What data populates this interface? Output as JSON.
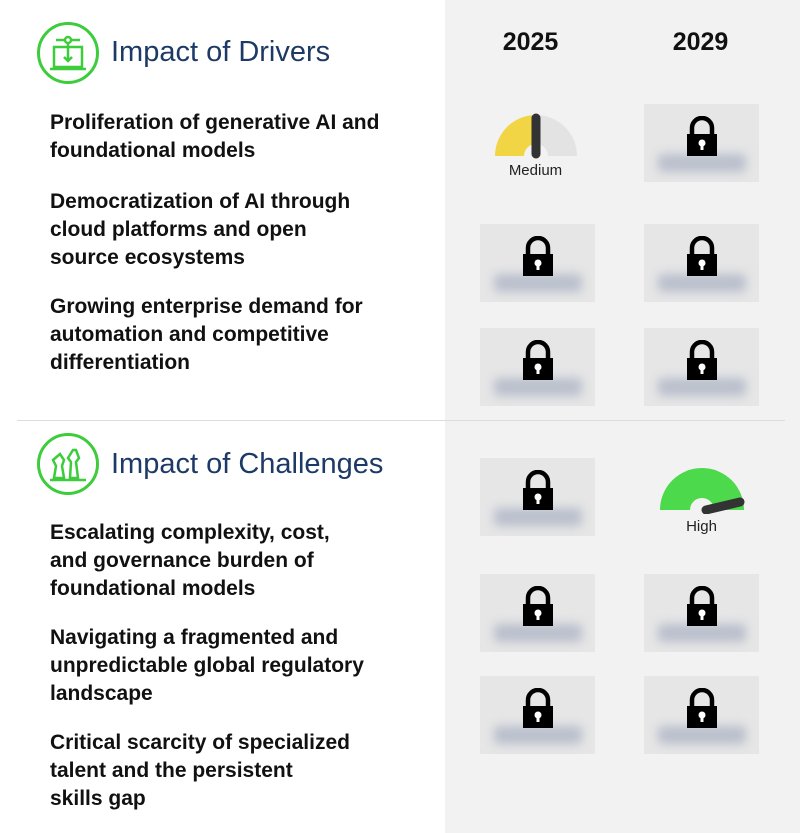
{
  "columns": [
    "2025",
    "2029"
  ],
  "drivers": {
    "title": "Impact of Drivers",
    "icon": "ai-laptop-icon",
    "rows": [
      {
        "label": "Proliferation of generative AI and foundational models",
        "y2025": {
          "type": "gauge",
          "level": "Medium",
          "value": 0.5,
          "color": "#f2d545"
        },
        "y2029": {
          "type": "locked"
        }
      },
      {
        "label": "Democratization of AI through cloud platforms and open source ecosystems",
        "y2025": {
          "type": "locked"
        },
        "y2029": {
          "type": "locked"
        }
      },
      {
        "label": "Growing enterprise demand for automation and competitive differentiation",
        "y2025": {
          "type": "locked"
        },
        "y2029": {
          "type": "locked"
        }
      }
    ]
  },
  "challenges": {
    "title": "Impact of Challenges",
    "icon": "chess-pieces-icon",
    "rows": [
      {
        "label": "Escalating complexity, cost, and governance burden of foundational models",
        "y2025": {
          "type": "locked"
        },
        "y2029": {
          "type": "gauge",
          "level": "High",
          "value": 0.95,
          "color": "#4cd94c"
        }
      },
      {
        "label": "Navigating a fragmented and unpredictable global regulatory landscape",
        "y2025": {
          "type": "locked"
        },
        "y2029": {
          "type": "locked"
        }
      },
      {
        "label": "Critical scarcity of specialized talent and the persistent skills gap",
        "y2025": {
          "type": "locked"
        },
        "y2029": {
          "type": "locked"
        }
      }
    ]
  },
  "colors": {
    "accent_green": "#3ccc3c",
    "title_blue": "#1d3a66",
    "panel_bg": "#f2f2f2"
  }
}
